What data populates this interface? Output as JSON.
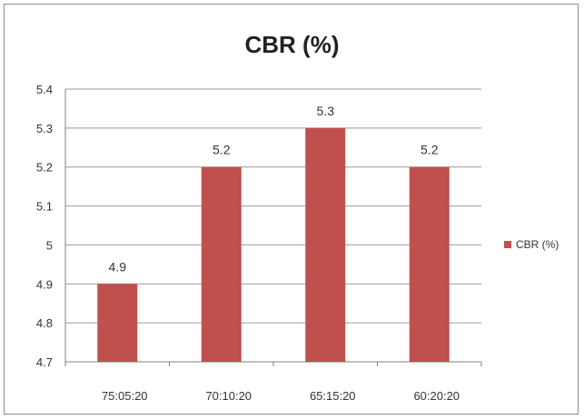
{
  "chart_data": {
    "type": "bar",
    "title": "CBR (%)",
    "categories": [
      "75:05:20",
      "70:10:20",
      "65:15:20",
      "60:20:20"
    ],
    "series": [
      {
        "name": "CBR (%)",
        "values": [
          4.9,
          5.2,
          5.3,
          5.2
        ],
        "color": "#c0504d"
      }
    ],
    "data_labels": [
      "4.9",
      "5.2",
      "5.3",
      "5.2"
    ],
    "y_ticks": [
      "4.7",
      "4.8",
      "4.9",
      "5",
      "5.1",
      "5.2",
      "5.3",
      "5.4"
    ],
    "ylim": [
      4.7,
      5.4
    ],
    "xlabel": "",
    "ylabel": "",
    "grid": true,
    "legend_position": "right",
    "colors": {
      "gridline": "#9a9a9a",
      "axis": "#808080",
      "text": "#333333"
    }
  }
}
